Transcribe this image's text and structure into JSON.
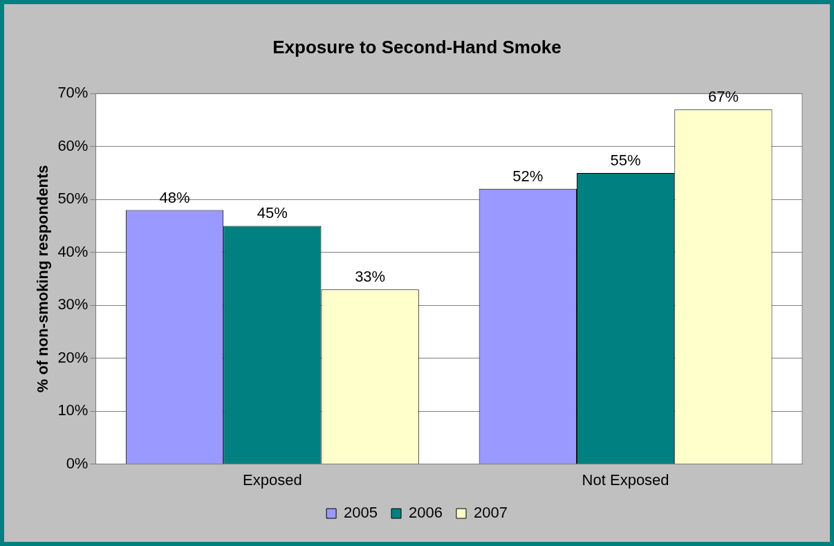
{
  "chart_data": {
    "type": "bar",
    "title": "Exposure to Second-Hand Smoke",
    "ylabel": "% of non-smoking respondents",
    "categories": [
      "Exposed",
      "Not Exposed"
    ],
    "series": [
      {
        "name": "2005",
        "color": "#9999ff",
        "values": [
          48,
          52
        ],
        "value_labels": [
          "48%",
          "52%"
        ]
      },
      {
        "name": "2006",
        "color": "#008080",
        "values": [
          45,
          55
        ],
        "value_labels": [
          "45%",
          "55%"
        ]
      },
      {
        "name": "2007",
        "color": "#ffffcc",
        "values": [
          33,
          67
        ],
        "value_labels": [
          "33%",
          "67%"
        ]
      }
    ],
    "ylim": [
      0,
      70
    ],
    "yticks": [
      {
        "value": 0,
        "label": "0%"
      },
      {
        "value": 10,
        "label": "10%"
      },
      {
        "value": 20,
        "label": "20%"
      },
      {
        "value": 30,
        "label": "30%"
      },
      {
        "value": 40,
        "label": "40%"
      },
      {
        "value": 50,
        "label": "50%"
      },
      {
        "value": 60,
        "label": "60%"
      },
      {
        "value": 70,
        "label": "70%"
      }
    ],
    "grid": "y",
    "legend": "bottom"
  }
}
